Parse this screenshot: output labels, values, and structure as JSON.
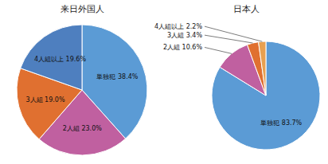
{
  "chart_data": [
    {
      "type": "pie",
      "title": "来日外国人",
      "categories": [
        "単独犯",
        "2人組",
        "3人組",
        "4人組以上"
      ],
      "values": [
        38.4,
        23.0,
        19.0,
        19.6
      ],
      "value_labels": [
        "38.4%",
        "23.0%",
        "19.0%",
        "19.6%"
      ],
      "colors": [
        "#5b9bd5",
        "#c060a0",
        "#e07030",
        "#4e7fbf"
      ],
      "data_labels": true
    },
    {
      "type": "pie",
      "title": "日本人",
      "categories": [
        "単独犯",
        "2人組",
        "3人組",
        "4人組以上"
      ],
      "values": [
        83.7,
        10.6,
        3.4,
        2.2
      ],
      "value_labels": [
        "83.7%",
        "10.6%",
        "3.4%",
        "2.2%"
      ],
      "colors": [
        "#5b9bd5",
        "#c060a0",
        "#e07030",
        "#e8a050"
      ],
      "data_labels": true
    }
  ]
}
